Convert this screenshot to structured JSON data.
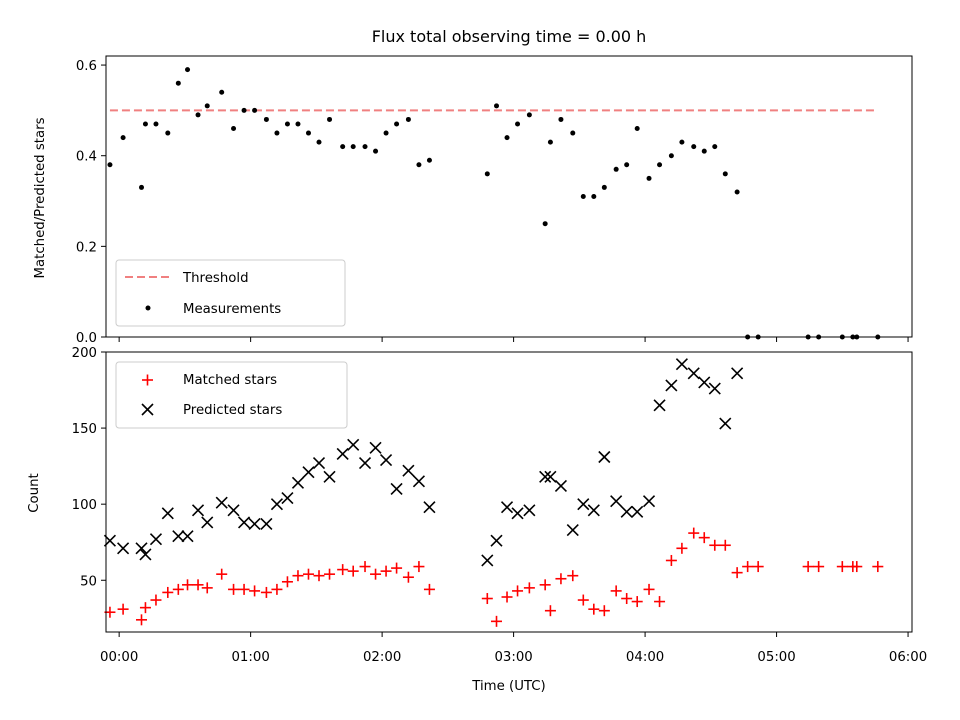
{
  "chart_data": [
    {
      "type": "scatter",
      "title": "Flux total observing time = 0.00 h",
      "xlabel": "",
      "ylabel": "Matched/Predicted stars",
      "ylim": [
        0,
        0.62
      ],
      "yticks": [
        0.0,
        0.2,
        0.4,
        0.6
      ],
      "ytick_labels": [
        "0.0",
        "0.2",
        "0.4",
        "0.6"
      ],
      "xlim": [
        -0.1,
        6.03
      ],
      "legend": {
        "placement": "lower-left",
        "entries": [
          "Threshold",
          "Measurements"
        ]
      },
      "threshold": {
        "name": "Threshold",
        "x": [
          -0.07,
          5.77
        ],
        "value": 0.5,
        "color": "#f08080"
      },
      "series": [
        {
          "name": "Measurements",
          "color": "#000000",
          "x": [
            -0.07,
            0.03,
            0.17,
            0.2,
            0.28,
            0.37,
            0.45,
            0.52,
            0.6,
            0.67,
            0.78,
            0.87,
            0.95,
            1.03,
            1.12,
            1.2,
            1.28,
            1.36,
            1.44,
            1.52,
            1.6,
            1.7,
            1.78,
            1.87,
            1.95,
            2.03,
            2.11,
            2.2,
            2.28,
            2.36,
            2.8,
            2.87,
            2.95,
            3.03,
            3.12,
            3.24,
            3.28,
            3.36,
            3.45,
            3.53,
            3.61,
            3.69,
            3.78,
            3.86,
            3.94,
            4.03,
            4.11,
            4.2,
            4.28,
            4.37,
            4.45,
            4.53,
            4.61,
            4.7,
            4.78,
            4.86,
            5.24,
            5.32,
            5.5,
            5.58,
            5.61,
            5.77
          ],
          "y": [
            0.38,
            0.44,
            0.33,
            0.47,
            0.47,
            0.45,
            0.56,
            0.59,
            0.49,
            0.51,
            0.54,
            0.46,
            0.5,
            0.5,
            0.48,
            0.45,
            0.47,
            0.47,
            0.45,
            0.43,
            0.48,
            0.42,
            0.42,
            0.42,
            0.41,
            0.45,
            0.47,
            0.48,
            0.38,
            0.39,
            0.36,
            0.51,
            0.44,
            0.47,
            0.49,
            0.25,
            0.43,
            0.48,
            0.45,
            0.31,
            0.31,
            0.33,
            0.37,
            0.38,
            0.46,
            0.35,
            0.38,
            0.4,
            0.43,
            0.42,
            0.41,
            0.42,
            0.36,
            0.32,
            0.0,
            0.0,
            0.0,
            0.0,
            0.0,
            0.0,
            0.0,
            0.0
          ]
        }
      ]
    },
    {
      "type": "scatter",
      "title": "",
      "xlabel": "Time (UTC)",
      "ylabel": "Count",
      "ylim": [
        16,
        200
      ],
      "yticks": [
        50,
        100,
        150,
        200
      ],
      "ytick_labels": [
        "50",
        "100",
        "150",
        "200"
      ],
      "xlim": [
        -0.1,
        6.03
      ],
      "xticks": [
        0,
        1,
        2,
        3,
        4,
        5,
        6
      ],
      "xtick_labels": [
        "00:00",
        "01:00",
        "02:00",
        "03:00",
        "04:00",
        "05:00",
        "06:00"
      ],
      "legend": {
        "placement": "upper-left",
        "entries": [
          "Matched stars",
          "Predicted stars"
        ]
      },
      "series": [
        {
          "name": "Matched stars",
          "marker": "plus",
          "color": "#ff0000",
          "x": [
            -0.07,
            0.03,
            0.17,
            0.2,
            0.28,
            0.37,
            0.45,
            0.52,
            0.6,
            0.67,
            0.78,
            0.87,
            0.95,
            1.03,
            1.12,
            1.2,
            1.28,
            1.36,
            1.44,
            1.52,
            1.6,
            1.7,
            1.78,
            1.87,
            1.95,
            2.03,
            2.11,
            2.2,
            2.28,
            2.36,
            2.8,
            2.87,
            2.95,
            3.03,
            3.12,
            3.24,
            3.28,
            3.36,
            3.45,
            3.53,
            3.61,
            3.69,
            3.78,
            3.86,
            3.94,
            4.03,
            4.11,
            4.2,
            4.28,
            4.37,
            4.45,
            4.53,
            4.61,
            4.7,
            4.78,
            4.86,
            5.24,
            5.32,
            5.5,
            5.58,
            5.61,
            5.77
          ],
          "y": [
            29,
            31,
            24,
            32,
            37,
            42,
            44,
            47,
            47,
            45,
            54,
            44,
            44,
            43,
            42,
            44,
            49,
            53,
            54,
            53,
            54,
            57,
            56,
            59,
            54,
            56,
            58,
            52,
            59,
            44,
            38,
            23,
            39,
            43,
            45,
            47,
            30,
            51,
            53,
            37,
            31,
            30,
            43,
            38,
            36,
            44,
            36,
            63,
            71,
            81,
            78,
            73,
            73,
            55,
            59,
            59,
            59,
            59,
            59,
            59,
            59,
            59
          ]
        },
        {
          "name": "Predicted stars",
          "marker": "cross",
          "color": "#000000",
          "x": [
            -0.07,
            0.03,
            0.17,
            0.2,
            0.28,
            0.37,
            0.45,
            0.52,
            0.6,
            0.67,
            0.78,
            0.87,
            0.95,
            1.03,
            1.12,
            1.2,
            1.28,
            1.36,
            1.44,
            1.52,
            1.6,
            1.7,
            1.78,
            1.87,
            1.95,
            2.03,
            2.11,
            2.2,
            2.28,
            2.36,
            2.8,
            2.87,
            2.95,
            3.03,
            3.12,
            3.24,
            3.28,
            3.36,
            3.45,
            3.53,
            3.61,
            3.69,
            3.78,
            3.86,
            3.94,
            4.03,
            4.11,
            4.2,
            4.28,
            4.37,
            4.45,
            4.53,
            4.61,
            4.7
          ],
          "y": [
            76,
            71,
            71,
            67,
            77,
            94,
            79,
            79,
            96,
            88,
            101,
            96,
            88,
            87,
            87,
            100,
            104,
            114,
            121,
            127,
            118,
            133,
            139,
            127,
            137,
            129,
            110,
            122,
            115,
            98,
            63,
            76,
            98,
            94,
            96,
            118,
            118,
            112,
            83,
            100,
            96,
            131,
            102,
            95,
            95,
            102,
            165,
            178,
            192,
            186,
            180,
            176,
            153,
            186
          ]
        }
      ]
    }
  ]
}
